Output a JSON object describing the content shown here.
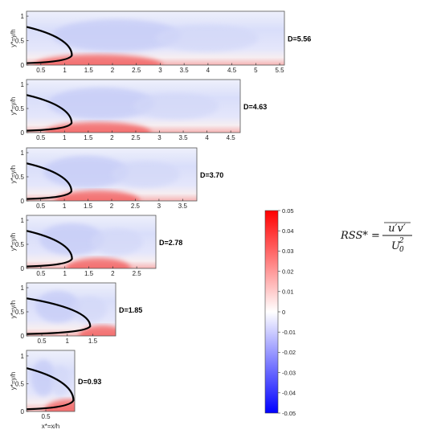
{
  "chart_data": {
    "type": "heatmap",
    "panels": [
      {
        "d_label": "D=5.56",
        "xlim": [
          0.2,
          5.6
        ],
        "x_ticks": [
          "0.5",
          "1",
          "1.5",
          "2",
          "2.5",
          "3",
          "3.5",
          "4",
          "4.5",
          "5",
          "5.5"
        ],
        "y_ticks": [
          "0",
          "0.5",
          "1"
        ],
        "ylabel": "y*=y/h"
      },
      {
        "d_label": "D=4.63",
        "xlim": [
          0.2,
          4.7
        ],
        "x_ticks": [
          "0.5",
          "1",
          "1.5",
          "2",
          "2.5",
          "3",
          "3.5",
          "4",
          "4.5"
        ],
        "y_ticks": [
          "0",
          "0.5",
          "1"
        ],
        "ylabel": "y*=y/h"
      },
      {
        "d_label": "D=3.70",
        "xlim": [
          0.2,
          3.8
        ],
        "x_ticks": [
          "0.5",
          "1",
          "1.5",
          "2",
          "2.5",
          "3",
          "3.5"
        ],
        "y_ticks": [
          "0",
          "0.5",
          "1"
        ],
        "ylabel": "y*=y/h"
      },
      {
        "d_label": "D=2.78",
        "xlim": [
          0.2,
          2.9
        ],
        "x_ticks": [
          "0.5",
          "1",
          "1.5",
          "2",
          "2.5"
        ],
        "y_ticks": [
          "0",
          "0.5",
          "1"
        ],
        "ylabel": "y*=y/h"
      },
      {
        "d_label": "D=1.85",
        "xlim": [
          0.2,
          1.95
        ],
        "x_ticks": [
          "0.5",
          "1",
          "1.5"
        ],
        "y_ticks": [
          "0",
          "0.5",
          "1"
        ],
        "ylabel": "y*=y/h"
      },
      {
        "d_label": "D=0.93",
        "xlim": [
          0.2,
          0.95
        ],
        "x_ticks": [
          "0.5"
        ],
        "y_ticks": [
          "0",
          "0.5",
          "1"
        ],
        "ylabel": "y*=y/h",
        "xlabel": "x*=x/h"
      }
    ],
    "colorbar": {
      "range": [
        -0.05,
        0.05
      ],
      "ticks": [
        "0.05",
        "0.04",
        "0.03",
        "0.02",
        "0.01",
        "0",
        "-0.01",
        "-0.02",
        "-0.03",
        "-0.04",
        "-0.05"
      ],
      "colors": {
        "high": "#ff0000",
        "mid": "#ffffff",
        "low": "#0000ff"
      }
    },
    "equation": {
      "lhs": "RSS* =",
      "numerator": "u′v′",
      "denominator_base": "U",
      "denominator_sub": "0",
      "denominator_sup": "2"
    }
  }
}
